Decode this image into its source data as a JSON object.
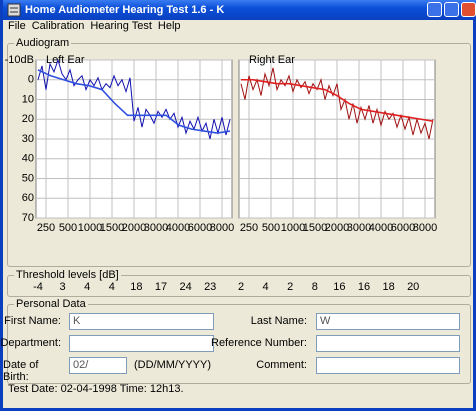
{
  "window": {
    "title": "Home Audiometer Hearing Test 1.6 - K",
    "menu": [
      "File",
      "Calibration",
      "Hearing Test",
      "Help"
    ]
  },
  "audiogram": {
    "label": "Audiogram",
    "ylim": [
      -10,
      70
    ],
    "yticks": [
      {
        "value": -10,
        "label": "-10dB"
      },
      0,
      10,
      20,
      30,
      40,
      50,
      60,
      70
    ],
    "frequencies": [
      "250",
      "500",
      "1000",
      "1500",
      "2000",
      "3000",
      "4000",
      "6000",
      "8000"
    ],
    "charts": [
      {
        "name": "Left Ear",
        "color": "#1010b0",
        "fit_color": "#3050e0",
        "values": [
          0,
          -7,
          5,
          -8,
          -4,
          -10,
          -3,
          0,
          -5,
          3,
          0,
          -2,
          5,
          0,
          3,
          -1,
          5,
          2,
          4,
          -2,
          3,
          0,
          6,
          -1,
          21,
          14,
          24,
          15,
          18,
          22,
          16,
          19,
          15,
          20,
          17,
          24,
          19,
          27,
          21,
          25,
          19,
          26,
          22,
          30,
          20,
          27,
          19,
          28,
          20
        ],
        "fit": [
          -5,
          -2,
          0,
          2,
          3,
          5,
          12,
          18,
          18,
          18,
          18,
          23,
          25,
          26,
          27,
          26
        ]
      },
      {
        "name": "Right Ear",
        "color": "#a01010",
        "fit_color": "#e02020",
        "values": [
          2,
          10,
          -2,
          5,
          0,
          8,
          -3,
          3,
          -6,
          5,
          0,
          3,
          -2,
          6,
          0,
          4,
          1,
          7,
          2,
          5,
          0,
          10,
          3,
          8,
          2,
          15,
          10,
          20,
          12,
          22,
          14,
          20,
          13,
          22,
          15,
          23,
          16,
          20,
          17,
          24,
          18,
          25,
          19,
          28,
          20,
          27,
          22,
          30,
          20
        ],
        "fit": [
          0,
          0,
          1,
          2,
          2,
          3,
          4,
          5,
          8,
          12,
          15,
          16,
          17,
          18,
          19,
          20,
          21
        ]
      }
    ]
  },
  "thresholds": {
    "label": "Threshold levels [dB]",
    "left": [
      -4,
      3,
      4,
      4,
      18,
      17,
      24,
      23
    ],
    "right": [
      2,
      4,
      2,
      8,
      16,
      16,
      18,
      20
    ]
  },
  "personal": {
    "label": "Personal Data",
    "fields": [
      {
        "label": "First Name:",
        "value": "K"
      },
      {
        "label": "Last Name:",
        "value": "W"
      },
      {
        "label": "Department:",
        "value": ""
      },
      {
        "label": "Reference Number:",
        "value": ""
      },
      {
        "label": "Date of Birth:",
        "value": "02/",
        "hint": "(DD/MM/YYYY)"
      },
      {
        "label": "Comment:",
        "value": ""
      }
    ]
  },
  "status": "Test Date: 02-04-1998 Time: 12h13."
}
